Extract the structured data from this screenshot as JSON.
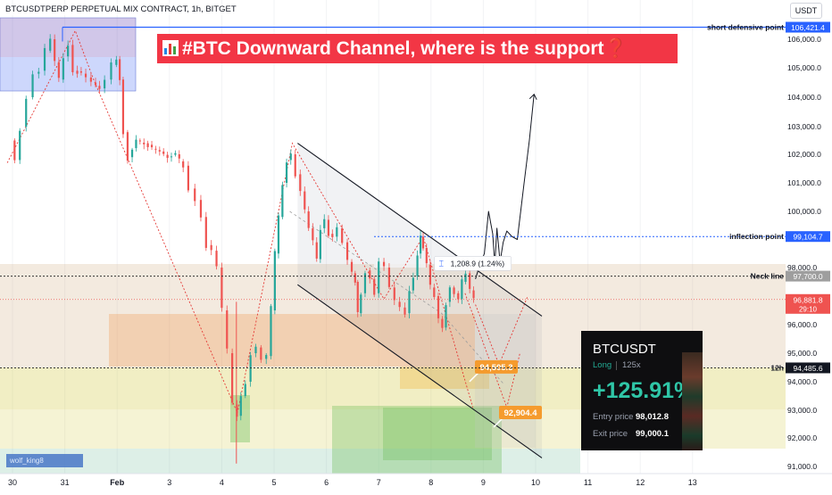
{
  "chart_title": "BTCUSDTPERP PERPETUAL MIX CONTRACT, 1h, BITGET",
  "currency": "USDT",
  "headline": {
    "text": "#BTC Downward Channel, where is the support",
    "question_mark": "❓",
    "icon": "bar-chart-emoji-icon"
  },
  "chart_data": {
    "type": "candlestick",
    "x_tick_labels": [
      "30",
      "31",
      "Feb",
      "3",
      "4",
      "5",
      "6",
      "7",
      "8",
      "9",
      "10",
      "11",
      "12",
      "13"
    ],
    "y_tick_labels": [
      "106,000.0",
      "105,000.0",
      "104,000.0",
      "103,000.0",
      "102,000.0",
      "101,000.0",
      "100,000.0",
      "98,000.0",
      "96,000.0",
      "95,000.0",
      "94,000.0",
      "93,000.0",
      "92,000.0",
      "91,000.0"
    ],
    "y_ticks": [
      106000,
      105000,
      104000,
      103000,
      102000,
      101000,
      100000,
      98000,
      96000,
      95000,
      94000,
      93000,
      92000,
      91000
    ],
    "ylim": [
      90500,
      107000
    ],
    "x_range_days": [
      0,
      14.3
    ],
    "colors": {
      "up": "#26a69a",
      "down": "#ef5350"
    },
    "price_path": [
      [
        0,
        102500
      ],
      [
        0.08,
        101800
      ],
      [
        0.2,
        103000
      ],
      [
        0.32,
        104000
      ],
      [
        0.45,
        104800
      ],
      [
        0.55,
        104900
      ],
      [
        0.68,
        105600
      ],
      [
        0.76,
        106000
      ],
      [
        0.85,
        105200
      ],
      [
        0.92,
        104600
      ],
      [
        1.02,
        105400
      ],
      [
        1.1,
        105800
      ],
      [
        1.2,
        104900
      ],
      [
        1.35,
        104800
      ],
      [
        1.55,
        104500
      ],
      [
        1.7,
        104300
      ],
      [
        1.82,
        104600
      ],
      [
        1.95,
        105100
      ],
      [
        2.02,
        105300
      ],
      [
        2.08,
        104600
      ],
      [
        2.15,
        102800
      ],
      [
        2.25,
        101900
      ],
      [
        2.4,
        102500
      ],
      [
        2.55,
        102400
      ],
      [
        2.7,
        102200
      ],
      [
        2.85,
        102100
      ],
      [
        3.0,
        101900
      ],
      [
        3.15,
        102000
      ],
      [
        3.3,
        101600
      ],
      [
        3.42,
        100800
      ],
      [
        3.55,
        100400
      ],
      [
        3.65,
        99800
      ],
      [
        3.75,
        98800
      ],
      [
        3.85,
        98600
      ],
      [
        3.95,
        98000
      ],
      [
        4.05,
        96500
      ],
      [
        4.15,
        95000
      ],
      [
        4.25,
        93200
      ],
      [
        4.33,
        92800
      ],
      [
        4.4,
        93500
      ],
      [
        4.5,
        94000
      ],
      [
        4.6,
        95000
      ],
      [
        4.7,
        95200
      ],
      [
        4.8,
        94800
      ],
      [
        4.9,
        94900
      ],
      [
        4.98,
        96500
      ],
      [
        5.05,
        98500
      ],
      [
        5.12,
        99800
      ],
      [
        5.2,
        101000
      ],
      [
        5.28,
        101800
      ],
      [
        5.36,
        102000
      ],
      [
        5.45,
        101300
      ],
      [
        5.55,
        100700
      ],
      [
        5.62,
        100000
      ],
      [
        5.7,
        99400
      ],
      [
        5.78,
        98900
      ],
      [
        5.85,
        98300
      ],
      [
        5.92,
        99400
      ],
      [
        6.0,
        99700
      ],
      [
        6.08,
        99200
      ],
      [
        6.15,
        99100
      ],
      [
        6.25,
        99400
      ],
      [
        6.35,
        98900
      ],
      [
        6.45,
        98200
      ],
      [
        6.52,
        97800
      ],
      [
        6.58,
        97500
      ],
      [
        6.62,
        96400
      ],
      [
        6.7,
        97100
      ],
      [
        6.78,
        97900
      ],
      [
        6.88,
        97600
      ],
      [
        6.95,
        97100
      ],
      [
        7.05,
        98200
      ],
      [
        7.15,
        98000
      ],
      [
        7.25,
        97300
      ],
      [
        7.35,
        96800
      ],
      [
        7.45,
        96600
      ],
      [
        7.55,
        96400
      ],
      [
        7.62,
        97200
      ],
      [
        7.7,
        97700
      ],
      [
        7.78,
        98500
      ],
      [
        7.82,
        99100
      ],
      [
        7.88,
        98700
      ],
      [
        7.95,
        98100
      ],
      [
        8.02,
        97300
      ],
      [
        8.1,
        97000
      ],
      [
        8.18,
        96200
      ],
      [
        8.25,
        95900
      ],
      [
        8.32,
        96800
      ],
      [
        8.4,
        97300
      ],
      [
        8.48,
        97100
      ],
      [
        8.56,
        96900
      ],
      [
        8.62,
        97500
      ],
      [
        8.7,
        97800
      ],
      [
        8.78,
        97200
      ],
      [
        8.85,
        96900
      ]
    ],
    "channel": {
      "upper": [
        [
          5.45,
          102400
        ],
        [
          10.12,
          96300
        ]
      ],
      "lower": [
        [
          5.45,
          97400
        ],
        [
          10.12,
          91300
        ]
      ]
    },
    "projection": [
      [
        8.85,
        97600
      ],
      [
        8.9,
        97900
      ],
      [
        9.02,
        98500
      ],
      [
        9.1,
        100000
      ],
      [
        9.18,
        99200
      ],
      [
        9.22,
        98100
      ],
      [
        9.26,
        99400
      ],
      [
        9.32,
        98200
      ],
      [
        9.38,
        98900
      ],
      [
        9.45,
        99300
      ],
      [
        9.55,
        99100
      ],
      [
        9.65,
        99000
      ],
      [
        9.78,
        101000
      ],
      [
        9.88,
        102500
      ],
      [
        9.97,
        104100
      ]
    ],
    "level_lines": [
      {
        "label": "short defensive point",
        "price": 106421.4,
        "price_label": "106,421.4",
        "style": "solid",
        "color": "#2962ff"
      },
      {
        "label": "inflection point",
        "price": 99104.7,
        "price_label": "99,104.7",
        "style": "dotted",
        "color": "#2962ff"
      },
      {
        "label": "Neck line",
        "price": 97700.0,
        "price_label": "97,700.0",
        "style": "dotted",
        "color": "#333333"
      },
      {
        "label": "12h",
        "price": 94485.6,
        "price_label": "94,485.6",
        "style": "dotted",
        "color": "#333333"
      }
    ],
    "current_price": {
      "price": 96881.8,
      "price_label": "96,881.8",
      "countdown": "29:10"
    },
    "measure": {
      "text": "1,208.9 (1.24%)"
    },
    "targets": [
      {
        "price": 94505.3,
        "label": "94,505.3",
        "day": 9.05
      },
      {
        "price": 92904.4,
        "label": "92,904.4",
        "day": 9.35
      }
    ]
  },
  "trade_card": {
    "ticker": "BTCUSDT",
    "side": "Long",
    "leverage": "125x",
    "roi": "+125.91%",
    "entry_label": "Entry price",
    "entry_value": "98,012.8",
    "exit_label": "Exit price",
    "exit_value": "99,000.1"
  },
  "watermark": "wolf_king8"
}
